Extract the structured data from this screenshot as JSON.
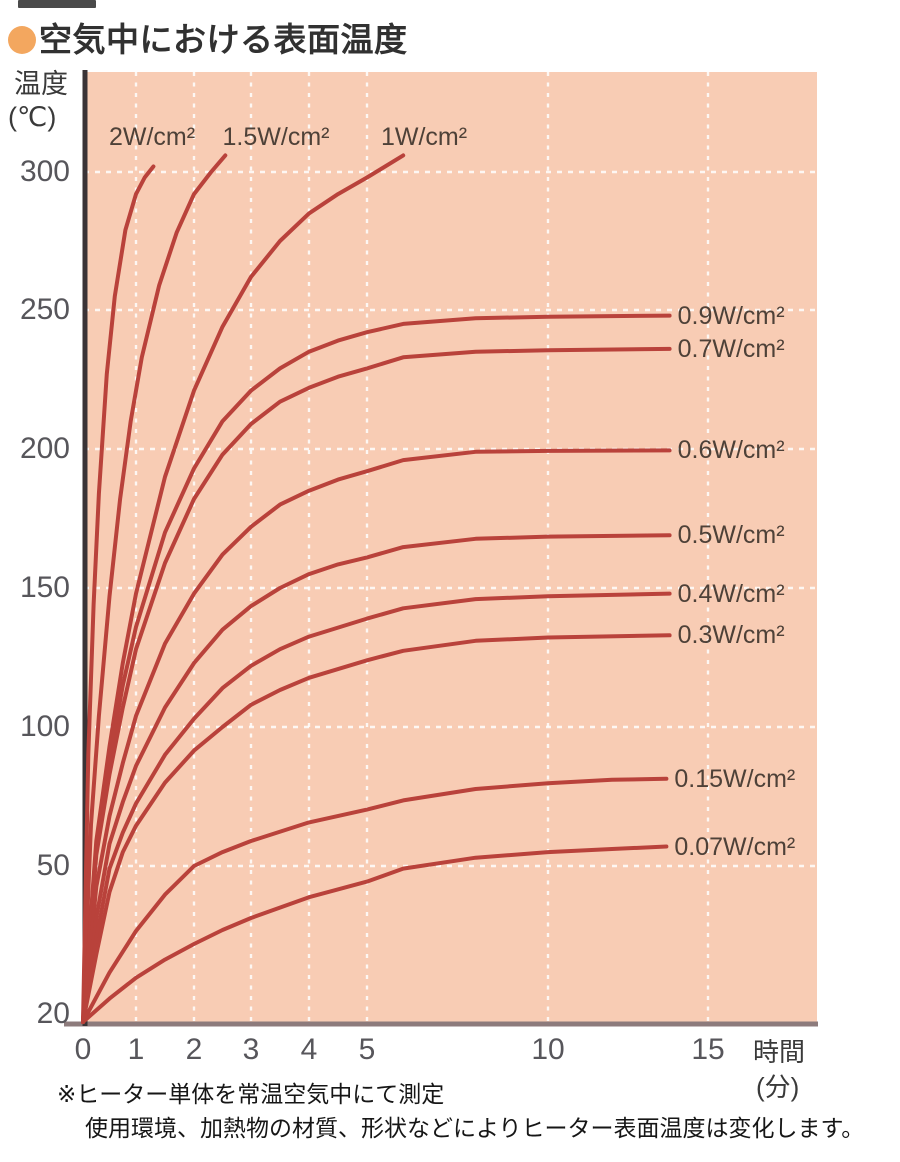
{
  "title": {
    "text": "空気中における表面温度"
  },
  "axes": {
    "y": {
      "unit_line1": "温度",
      "unit_line2": "(℃)"
    },
    "x": {
      "unit_line1": "時間",
      "unit_line2": "(分)"
    }
  },
  "notes": {
    "line1": "※ヒーター単体を常温空気中にて測定",
    "line2": "使用環境、加熱物の材質、形状などによりヒーター表面温度は変化します。"
  },
  "colors": {
    "plot_bg": "#f8ccb4",
    "curve": "#b9423b",
    "grid": "#ffffff",
    "y_axis_line": "#3a3336",
    "x_axis_line": "#8d7b7c",
    "title_text": "#313131",
    "tick_text": "#57565b",
    "curve_label_text": "#4e4138",
    "bullet": "#f3a75f",
    "note_text": "#161616",
    "artifact_bar": "#4a4a4a"
  },
  "chart_data": {
    "type": "line",
    "title": "空気中における表面温度",
    "xlabel": "時間(分)",
    "ylabel": "温度(℃)",
    "x_ticks": [
      0,
      1,
      2,
      3,
      4,
      5,
      10,
      15
    ],
    "y_ticks": [
      20,
      50,
      100,
      150,
      200,
      250,
      300
    ],
    "xlim": [
      0,
      18.4
    ],
    "ylim": [
      20,
      336
    ],
    "grid": true,
    "x_axis_compressed_after": 5,
    "legend_position": "inline-labels",
    "series": [
      {
        "name": "2W/cm²",
        "label_anchor": "top",
        "plateau": null,
        "points": [
          [
            0,
            20
          ],
          [
            0.1,
            90
          ],
          [
            0.2,
            144
          ],
          [
            0.3,
            184
          ],
          [
            0.45,
            227
          ],
          [
            0.6,
            255
          ],
          [
            0.8,
            279
          ],
          [
            1.0,
            292
          ],
          [
            1.15,
            298
          ],
          [
            1.3,
            302
          ]
        ]
      },
      {
        "name": "1.5W/cm²",
        "label_anchor": "top",
        "plateau": null,
        "points": [
          [
            0,
            20
          ],
          [
            0.15,
            65
          ],
          [
            0.3,
            104
          ],
          [
            0.5,
            147
          ],
          [
            0.7,
            182
          ],
          [
            0.9,
            210
          ],
          [
            1.1,
            233
          ],
          [
            1.4,
            259
          ],
          [
            1.7,
            278
          ],
          [
            2.0,
            292
          ],
          [
            2.3,
            300
          ],
          [
            2.55,
            306
          ]
        ]
      },
      {
        "name": "1W/cm²",
        "label_anchor": "top",
        "plateau": null,
        "points": [
          [
            0,
            20
          ],
          [
            0.25,
            59
          ],
          [
            0.5,
            93
          ],
          [
            0.75,
            123
          ],
          [
            1,
            148
          ],
          [
            1.5,
            190
          ],
          [
            2,
            221
          ],
          [
            2.5,
            244
          ],
          [
            3,
            262
          ],
          [
            3.5,
            275
          ],
          [
            4,
            285
          ],
          [
            4.5,
            292
          ],
          [
            5,
            298
          ],
          [
            5.5,
            302
          ],
          [
            6,
            306
          ]
        ]
      },
      {
        "name": "0.9W/cm²",
        "label_anchor": "right",
        "plateau": 248,
        "points": [
          [
            0,
            20
          ],
          [
            0.25,
            57
          ],
          [
            0.5,
            88
          ],
          [
            0.75,
            115
          ],
          [
            1,
            136
          ],
          [
            1.5,
            170
          ],
          [
            2,
            193
          ],
          [
            2.5,
            210
          ],
          [
            3,
            221
          ],
          [
            3.5,
            229
          ],
          [
            4,
            235
          ],
          [
            4.5,
            239
          ],
          [
            5,
            242
          ],
          [
            6,
            245
          ],
          [
            8,
            247
          ],
          [
            10,
            247.6
          ],
          [
            13.8,
            248
          ]
        ]
      },
      {
        "name": "0.7W/cm²",
        "label_anchor": "right",
        "plateau": 236,
        "points": [
          [
            0,
            20
          ],
          [
            0.25,
            54
          ],
          [
            0.5,
            83
          ],
          [
            0.75,
            107
          ],
          [
            1,
            128
          ],
          [
            1.5,
            159
          ],
          [
            2,
            182
          ],
          [
            2.5,
            198
          ],
          [
            3,
            209
          ],
          [
            3.5,
            217
          ],
          [
            4,
            222
          ],
          [
            4.5,
            226
          ],
          [
            5,
            229
          ],
          [
            6,
            233
          ],
          [
            8,
            235
          ],
          [
            10,
            235.5
          ],
          [
            13.8,
            236
          ]
        ]
      },
      {
        "name": "0.6W/cm²",
        "label_anchor": "right",
        "plateau": 199.5,
        "points": [
          [
            0,
            20
          ],
          [
            0.25,
            46
          ],
          [
            0.5,
            68
          ],
          [
            0.75,
            87
          ],
          [
            1,
            104
          ],
          [
            1.5,
            130
          ],
          [
            2,
            148
          ],
          [
            2.5,
            162
          ],
          [
            3,
            172
          ],
          [
            3.5,
            180
          ],
          [
            4,
            185
          ],
          [
            4.5,
            189
          ],
          [
            5,
            192
          ],
          [
            6,
            196
          ],
          [
            8,
            199
          ],
          [
            10,
            199.3
          ],
          [
            13.8,
            199.5
          ]
        ]
      },
      {
        "name": "0.5W/cm²",
        "label_anchor": "right",
        "plateau": 169,
        "points": [
          [
            0,
            20
          ],
          [
            0.25,
            40
          ],
          [
            0.5,
            58
          ],
          [
            0.75,
            73
          ],
          [
            1,
            86
          ],
          [
            1.5,
            107
          ],
          [
            2,
            123
          ],
          [
            2.5,
            135
          ],
          [
            3,
            143.5
          ],
          [
            3.5,
            150
          ],
          [
            4,
            155
          ],
          [
            4.5,
            158.5
          ],
          [
            5,
            161
          ],
          [
            6,
            164.7
          ],
          [
            8,
            167.7
          ],
          [
            10,
            168.5
          ],
          [
            13.8,
            169
          ]
        ]
      },
      {
        "name": "0.4W/cm²",
        "label_anchor": "right",
        "plateau": 148,
        "points": [
          [
            0,
            20
          ],
          [
            0.25,
            36
          ],
          [
            0.5,
            49.5
          ],
          [
            0.75,
            62
          ],
          [
            1,
            72.5
          ],
          [
            1.5,
            90
          ],
          [
            2,
            103
          ],
          [
            2.5,
            114
          ],
          [
            3,
            122
          ],
          [
            3.5,
            128
          ],
          [
            4,
            132.5
          ],
          [
            5,
            139
          ],
          [
            6,
            142.7
          ],
          [
            8,
            146
          ],
          [
            10,
            147
          ],
          [
            13.8,
            148
          ]
        ]
      },
      {
        "name": "0.3W/cm²",
        "label_anchor": "right",
        "plateau": 133,
        "points": [
          [
            0,
            20
          ],
          [
            0.25,
            33
          ],
          [
            0.5,
            45
          ],
          [
            0.75,
            55
          ],
          [
            1,
            64.5
          ],
          [
            1.5,
            80
          ],
          [
            2,
            91.5
          ],
          [
            2.5,
            100
          ],
          [
            3,
            108
          ],
          [
            3.5,
            113.3
          ],
          [
            4,
            117.7
          ],
          [
            5,
            124
          ],
          [
            6,
            127.4
          ],
          [
            8,
            131
          ],
          [
            10,
            132.2
          ],
          [
            13.8,
            133
          ]
        ]
      },
      {
        "name": "0.15W/cm²",
        "label_anchor": "right",
        "plateau": 82,
        "points": [
          [
            0,
            20
          ],
          [
            0.5,
            29.5
          ],
          [
            1,
            37.5
          ],
          [
            1.5,
            44.5
          ],
          [
            2,
            50
          ],
          [
            2.5,
            55
          ],
          [
            3,
            59
          ],
          [
            4,
            65.7
          ],
          [
            5,
            70.3
          ],
          [
            6,
            73.6
          ],
          [
            8,
            77.7
          ],
          [
            10,
            79.8
          ],
          [
            12,
            81
          ],
          [
            13.7,
            81.4
          ]
        ]
      },
      {
        "name": "0.07W/cm²",
        "label_anchor": "right",
        "plateau": 57,
        "points": [
          [
            0,
            20
          ],
          [
            0.5,
            24.5
          ],
          [
            1,
            28.5
          ],
          [
            1.5,
            32
          ],
          [
            2,
            35
          ],
          [
            2.5,
            37.7
          ],
          [
            3,
            40
          ],
          [
            4,
            44
          ],
          [
            5,
            47
          ],
          [
            6,
            49.5
          ],
          [
            8,
            53
          ],
          [
            10,
            55
          ],
          [
            12,
            56.1
          ],
          [
            13.7,
            57
          ]
        ]
      }
    ]
  }
}
